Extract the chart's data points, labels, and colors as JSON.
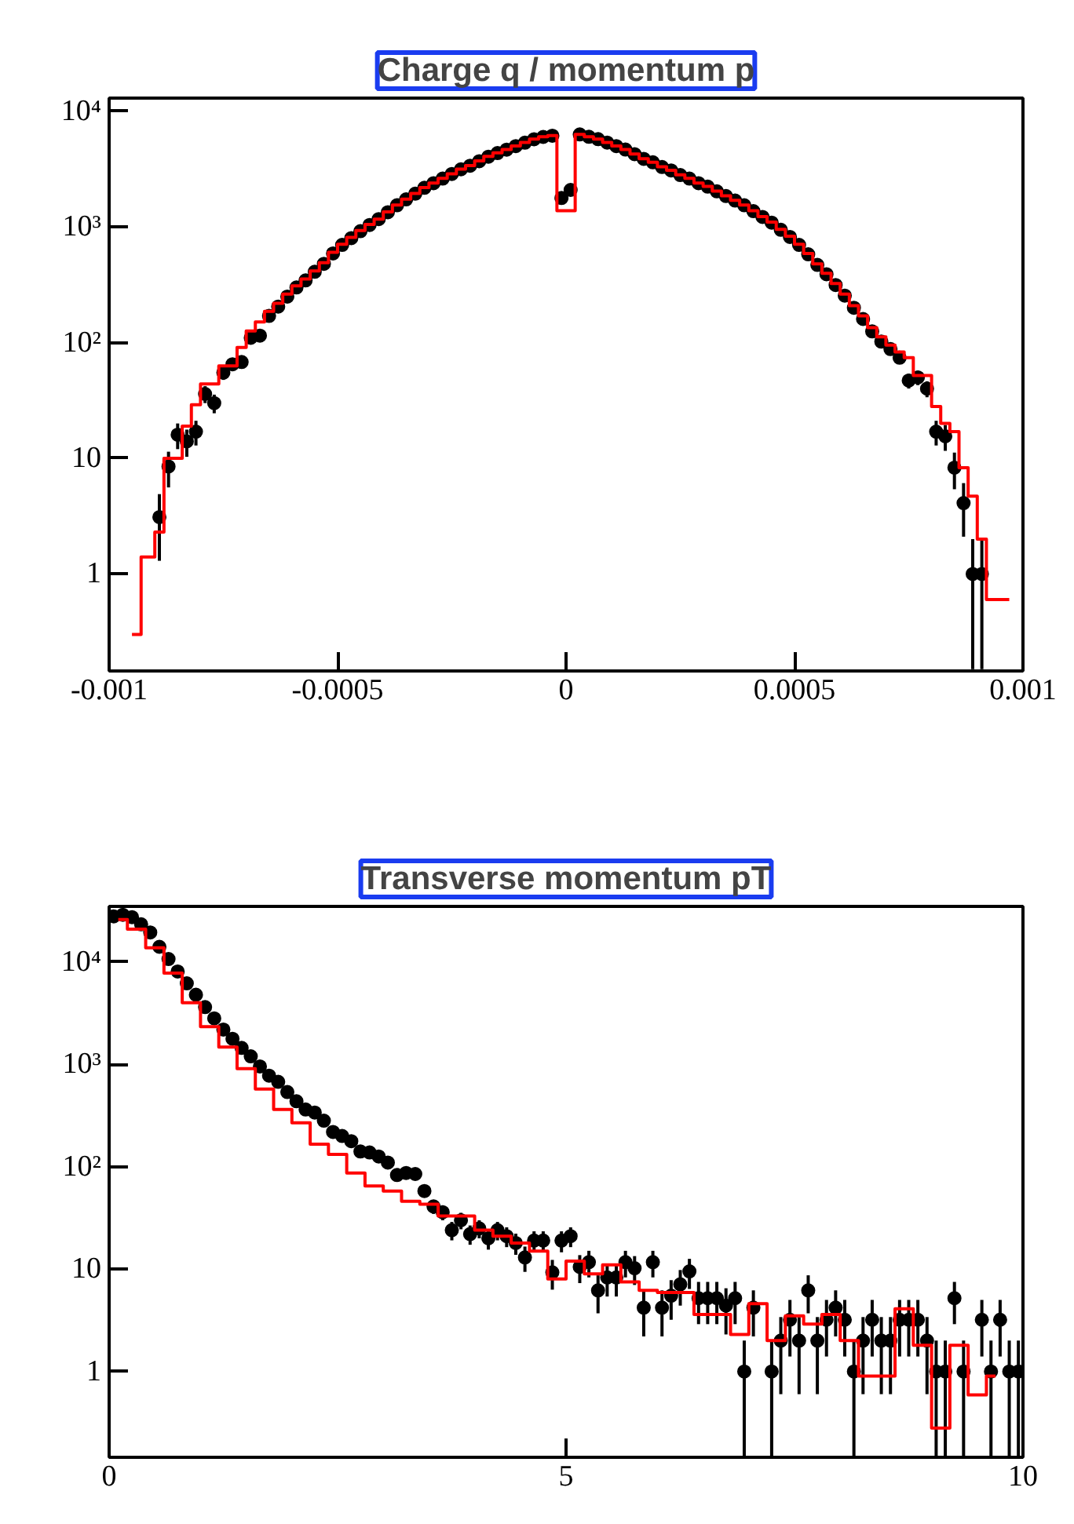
{
  "chart_data": [
    {
      "type": "step",
      "title": "Charge q / momentum p",
      "log": "y",
      "xlim": [
        -0.001,
        0.001
      ],
      "xticks": [
        -0.001,
        -0.0005,
        0,
        0.0005,
        0.001
      ],
      "ylim": [
        0.145,
        13000
      ],
      "yticks": [
        1,
        10,
        {
          "value": 100,
          "label": "10²"
        },
        {
          "value": 1000,
          "label": "10³"
        },
        {
          "value": 10000,
          "label": "10⁴"
        }
      ],
      "x": [
        -0.00095,
        -0.00091,
        -0.00089,
        -0.00087,
        -0.00085,
        -0.00083,
        -0.00081,
        -0.00079,
        -0.00077,
        -0.00075,
        -0.00073,
        -0.00071,
        -0.00069,
        -0.00067,
        -0.00065,
        -0.00063,
        -0.00061,
        -0.00059,
        -0.00057,
        -0.00055,
        -0.00053,
        -0.00051,
        -0.00049,
        -0.00047,
        -0.00045,
        -0.00043,
        -0.00041,
        -0.00039,
        -0.00037,
        -0.00035,
        -0.00033,
        -0.00031,
        -0.00029,
        -0.00027,
        -0.00025,
        -0.00023,
        -0.00021,
        -0.00019,
        -0.00017,
        -0.00015,
        -0.00013,
        -0.00011,
        -9e-05,
        -7e-05,
        -5e-05,
        -3e-05,
        -1e-05,
        1e-05,
        3e-05,
        5e-05,
        7e-05,
        9e-05,
        0.00011,
        0.00013,
        0.00015,
        0.00017,
        0.00019,
        0.00021,
        0.00023,
        0.00025,
        0.00027,
        0.00029,
        0.00031,
        0.00033,
        0.00035,
        0.00037,
        0.00039,
        0.00041,
        0.00043,
        0.00045,
        0.00047,
        0.00049,
        0.00051,
        0.00053,
        0.00055,
        0.00057,
        0.00059,
        0.00061,
        0.00063,
        0.00065,
        0.00067,
        0.00069,
        0.00071,
        0.00073,
        0.00075,
        0.00077,
        0.00079,
        0.00081,
        0.00083,
        0.00085,
        0.00087,
        0.00089,
        0.00091,
        0.00093,
        0.00097
      ],
      "series": [
        {
          "color": "#ff0000",
          "values": [
            0.3,
            1.4,
            2.3,
            10,
            10,
            19,
            29,
            44,
            44,
            63,
            63,
            91,
            126,
            151,
            186,
            219,
            263,
            309,
            355,
            417,
            490,
            603,
            708,
            813,
            933,
            1050,
            1170,
            1350,
            1550,
            1740,
            1950,
            2190,
            2400,
            2630,
            2880,
            3160,
            3390,
            3720,
            4070,
            4370,
            4680,
            5010,
            5370,
            5750,
            6030,
            6170,
            1380,
            1380,
            6310,
            6030,
            5750,
            5370,
            5010,
            4680,
            4270,
            3890,
            3630,
            3310,
            3090,
            2820,
            2630,
            2400,
            2240,
            2040,
            1860,
            1700,
            1550,
            1380,
            1230,
            1100,
            955,
            832,
            708,
            589,
            479,
            398,
            324,
            263,
            209,
            170,
            135,
            112,
            95,
            83,
            74,
            52,
            52,
            28,
            20,
            17,
            8.3,
            4.7,
            2.0,
            0.6,
            0.6
          ]
        },
        {
          "type": "scatter",
          "marker": "circle",
          "color": "#000000",
          "values": [
            null,
            null,
            3.1,
            8.5,
            16,
            14,
            17,
            36,
            30,
            55,
            65,
            68,
            110,
            115,
            170,
            205,
            250,
            300,
            345,
            410,
            480,
            590,
            700,
            800,
            920,
            1040,
            1170,
            1340,
            1540,
            1730,
            1940,
            2180,
            2390,
            2620,
            2870,
            3150,
            3380,
            3700,
            4050,
            4350,
            4660,
            5000,
            5350,
            5730,
            6000,
            6150,
            1780,
            2090,
            6300,
            6020,
            5740,
            5360,
            5000,
            4670,
            4260,
            3880,
            3620,
            3300,
            3080,
            2810,
            2620,
            2390,
            2230,
            2030,
            1850,
            1690,
            1540,
            1370,
            1220,
            1090,
            945,
            820,
            700,
            580,
            470,
            390,
            315,
            255,
            200,
            160,
            125,
            102,
            88,
            74,
            47,
            50,
            40,
            17,
            15.5,
            8.3,
            4.1,
            1.0,
            1.0,
            null,
            null
          ],
          "errors": [
            null,
            null,
            1.8,
            2.9,
            4,
            3.7,
            4.1,
            6,
            5.5,
            7.4,
            8,
            8.2,
            10.5,
            null,
            null,
            null,
            null,
            null,
            null,
            null,
            null,
            null,
            null,
            null,
            null,
            null,
            null,
            null,
            null,
            null,
            null,
            null,
            null,
            null,
            null,
            null,
            null,
            null,
            null,
            null,
            null,
            null,
            null,
            null,
            null,
            null,
            null,
            null,
            null,
            null,
            null,
            null,
            null,
            null,
            null,
            null,
            null,
            null,
            null,
            null,
            null,
            null,
            null,
            null,
            null,
            null,
            null,
            null,
            null,
            null,
            null,
            null,
            null,
            null,
            null,
            null,
            null,
            null,
            null,
            null,
            null,
            10,
            9.4,
            8.6,
            6.9,
            7.1,
            6.3,
            4.1,
            3.9,
            2.9,
            2,
            [
              0.15,
              2
            ],
            [
              0.15,
              2
            ],
            null,
            null
          ]
        }
      ]
    },
    {
      "type": "step",
      "title": "Transverse momentum pT",
      "log": "y",
      "xlim": [
        0,
        10
      ],
      "xticks": [
        0,
        5,
        10
      ],
      "ylim": [
        0.145,
        35000
      ],
      "yticks": [
        1,
        10,
        {
          "value": 100,
          "label": "10²"
        },
        {
          "value": 1000,
          "label": "10³"
        },
        {
          "value": 10000,
          "label": "10⁴"
        }
      ],
      "x": [
        0.1,
        0.3,
        0.5,
        0.7,
        0.9,
        1.1,
        1.3,
        1.5,
        1.7,
        1.9,
        2.1,
        2.3,
        2.5,
        2.7,
        2.9,
        3.1,
        3.3,
        3.5,
        3.7,
        3.9,
        4.1,
        4.3,
        4.5,
        4.7,
        4.9,
        5.1,
        5.3,
        5.5,
        5.7,
        5.9,
        6.1,
        6.3,
        6.5,
        6.7,
        6.9,
        7.1,
        7.3,
        7.5,
        7.7,
        7.9,
        8.1,
        8.3,
        8.5,
        8.7,
        8.9,
        9.1,
        9.3,
        9.5,
        9.7
      ],
      "series": [
        {
          "color": "#ff0000",
          "values": [
            26000,
            21000,
            13800,
            7800,
            4000,
            2340,
            1480,
            910,
            575,
            363,
            269,
            166,
            132,
            87,
            65,
            58,
            46,
            43,
            33,
            33,
            24,
            21,
            18,
            15,
            8,
            12,
            9,
            11,
            7.5,
            6.2,
            5.9,
            5.9,
            3.6,
            3.6,
            2.3,
            4.6,
            2.0,
            3.5,
            2.9,
            3.6,
            2.0,
            0.9,
            0.9,
            4.1,
            1.8,
            0.28,
            1.8,
            0.59,
            0.9
          ]
        },
        {
          "type": "scatter",
          "marker": "circle",
          "color": "#000000",
          "x": [
            0.05,
            0.15,
            0.25,
            0.35,
            0.45,
            0.55,
            0.65,
            0.75,
            0.85,
            0.95,
            1.05,
            1.15,
            1.25,
            1.35,
            1.45,
            1.55,
            1.65,
            1.75,
            1.85,
            1.95,
            2.05,
            2.15,
            2.25,
            2.35,
            2.45,
            2.55,
            2.65,
            2.75,
            2.85,
            2.95,
            3.05,
            3.15,
            3.25,
            3.35,
            3.45,
            3.55,
            3.65,
            3.75,
            3.85,
            3.95,
            4.05,
            4.15,
            4.25,
            4.35,
            4.45,
            4.55,
            4.65,
            4.75,
            4.85,
            4.95,
            5.05,
            5.15,
            5.25,
            5.35,
            5.45,
            5.55,
            5.65,
            5.75,
            5.85,
            5.95,
            6.05,
            6.15,
            6.25,
            6.35,
            6.45,
            6.55,
            6.65,
            6.75,
            6.85,
            6.95,
            7.05,
            7.15,
            7.25,
            7.35,
            7.45,
            7.55,
            7.65,
            7.75,
            7.85,
            7.95,
            8.05,
            8.15,
            8.25,
            8.35,
            8.45,
            8.55,
            8.65,
            8.75,
            8.85,
            8.95,
            9.05,
            9.15,
            9.25,
            9.35,
            9.45,
            9.55,
            9.65,
            9.75,
            9.85,
            9.95
          ],
          "values": [
            28000,
            29000,
            27500,
            23400,
            19500,
            14100,
            10700,
            8100,
            6200,
            4800,
            3630,
            2820,
            2190,
            1780,
            1450,
            1200,
            955,
            776,
            676,
            537,
            437,
            363,
            339,
            282,
            219,
            200,
            178,
            141,
            138,
            126,
            110,
            83,
            87,
            85,
            58,
            41,
            36,
            24,
            30,
            22,
            25,
            20,
            24,
            21,
            18,
            13,
            19,
            19,
            9.3,
            19,
            21,
            10.5,
            11.7,
            6.2,
            8.3,
            8.3,
            11.7,
            10.2,
            4.2,
            11.7,
            4.2,
            5.5,
            7.1,
            9.5,
            5.2,
            5.2,
            5.2,
            4.4,
            5.2,
            1.0,
            4.2,
            null,
            1.0,
            2.0,
            3.2,
            2.0,
            6.2,
            2.0,
            3.2,
            4.2,
            3.2,
            1.0,
            2.0,
            3.2,
            2.0,
            2.0,
            3.2,
            3.2,
            3.2,
            2.0,
            1.0,
            1.0,
            5.2,
            1.0,
            null,
            3.2,
            1.0,
            3.2,
            1.0,
            1.0
          ],
          "errors": [
            null,
            null,
            null,
            null,
            null,
            null,
            null,
            null,
            null,
            null,
            null,
            null,
            null,
            null,
            null,
            null,
            null,
            null,
            null,
            null,
            null,
            null,
            null,
            null,
            null,
            null,
            null,
            null,
            null,
            null,
            null,
            null,
            null,
            null,
            7.6,
            6.4,
            6,
            4.9,
            5.5,
            4.7,
            5,
            4.5,
            4.9,
            4.6,
            4.2,
            3.6,
            4.4,
            4.4,
            3,
            4.4,
            4.6,
            3.2,
            3.4,
            2.5,
            2.9,
            2.9,
            3.4,
            3.2,
            2,
            3.4,
            2,
            2.3,
            2.7,
            3.1,
            2.3,
            2.3,
            2.3,
            2.1,
            2.3,
            [
              0.15,
              2
            ],
            2,
            null,
            [
              0.15,
              2
            ],
            1.4,
            1.8,
            1.4,
            2.5,
            1.4,
            1.8,
            2,
            1.8,
            [
              0.15,
              2
            ],
            1.4,
            1.8,
            1.4,
            1.4,
            1.8,
            1.8,
            1.8,
            1.4,
            [
              0.15,
              2
            ],
            [
              0.15,
              2
            ],
            2.3,
            [
              0.15,
              2
            ],
            null,
            1.8,
            [
              0.15,
              2
            ],
            1.8,
            [
              0.15,
              2
            ],
            [
              0.15,
              2
            ]
          ]
        }
      ]
    }
  ]
}
